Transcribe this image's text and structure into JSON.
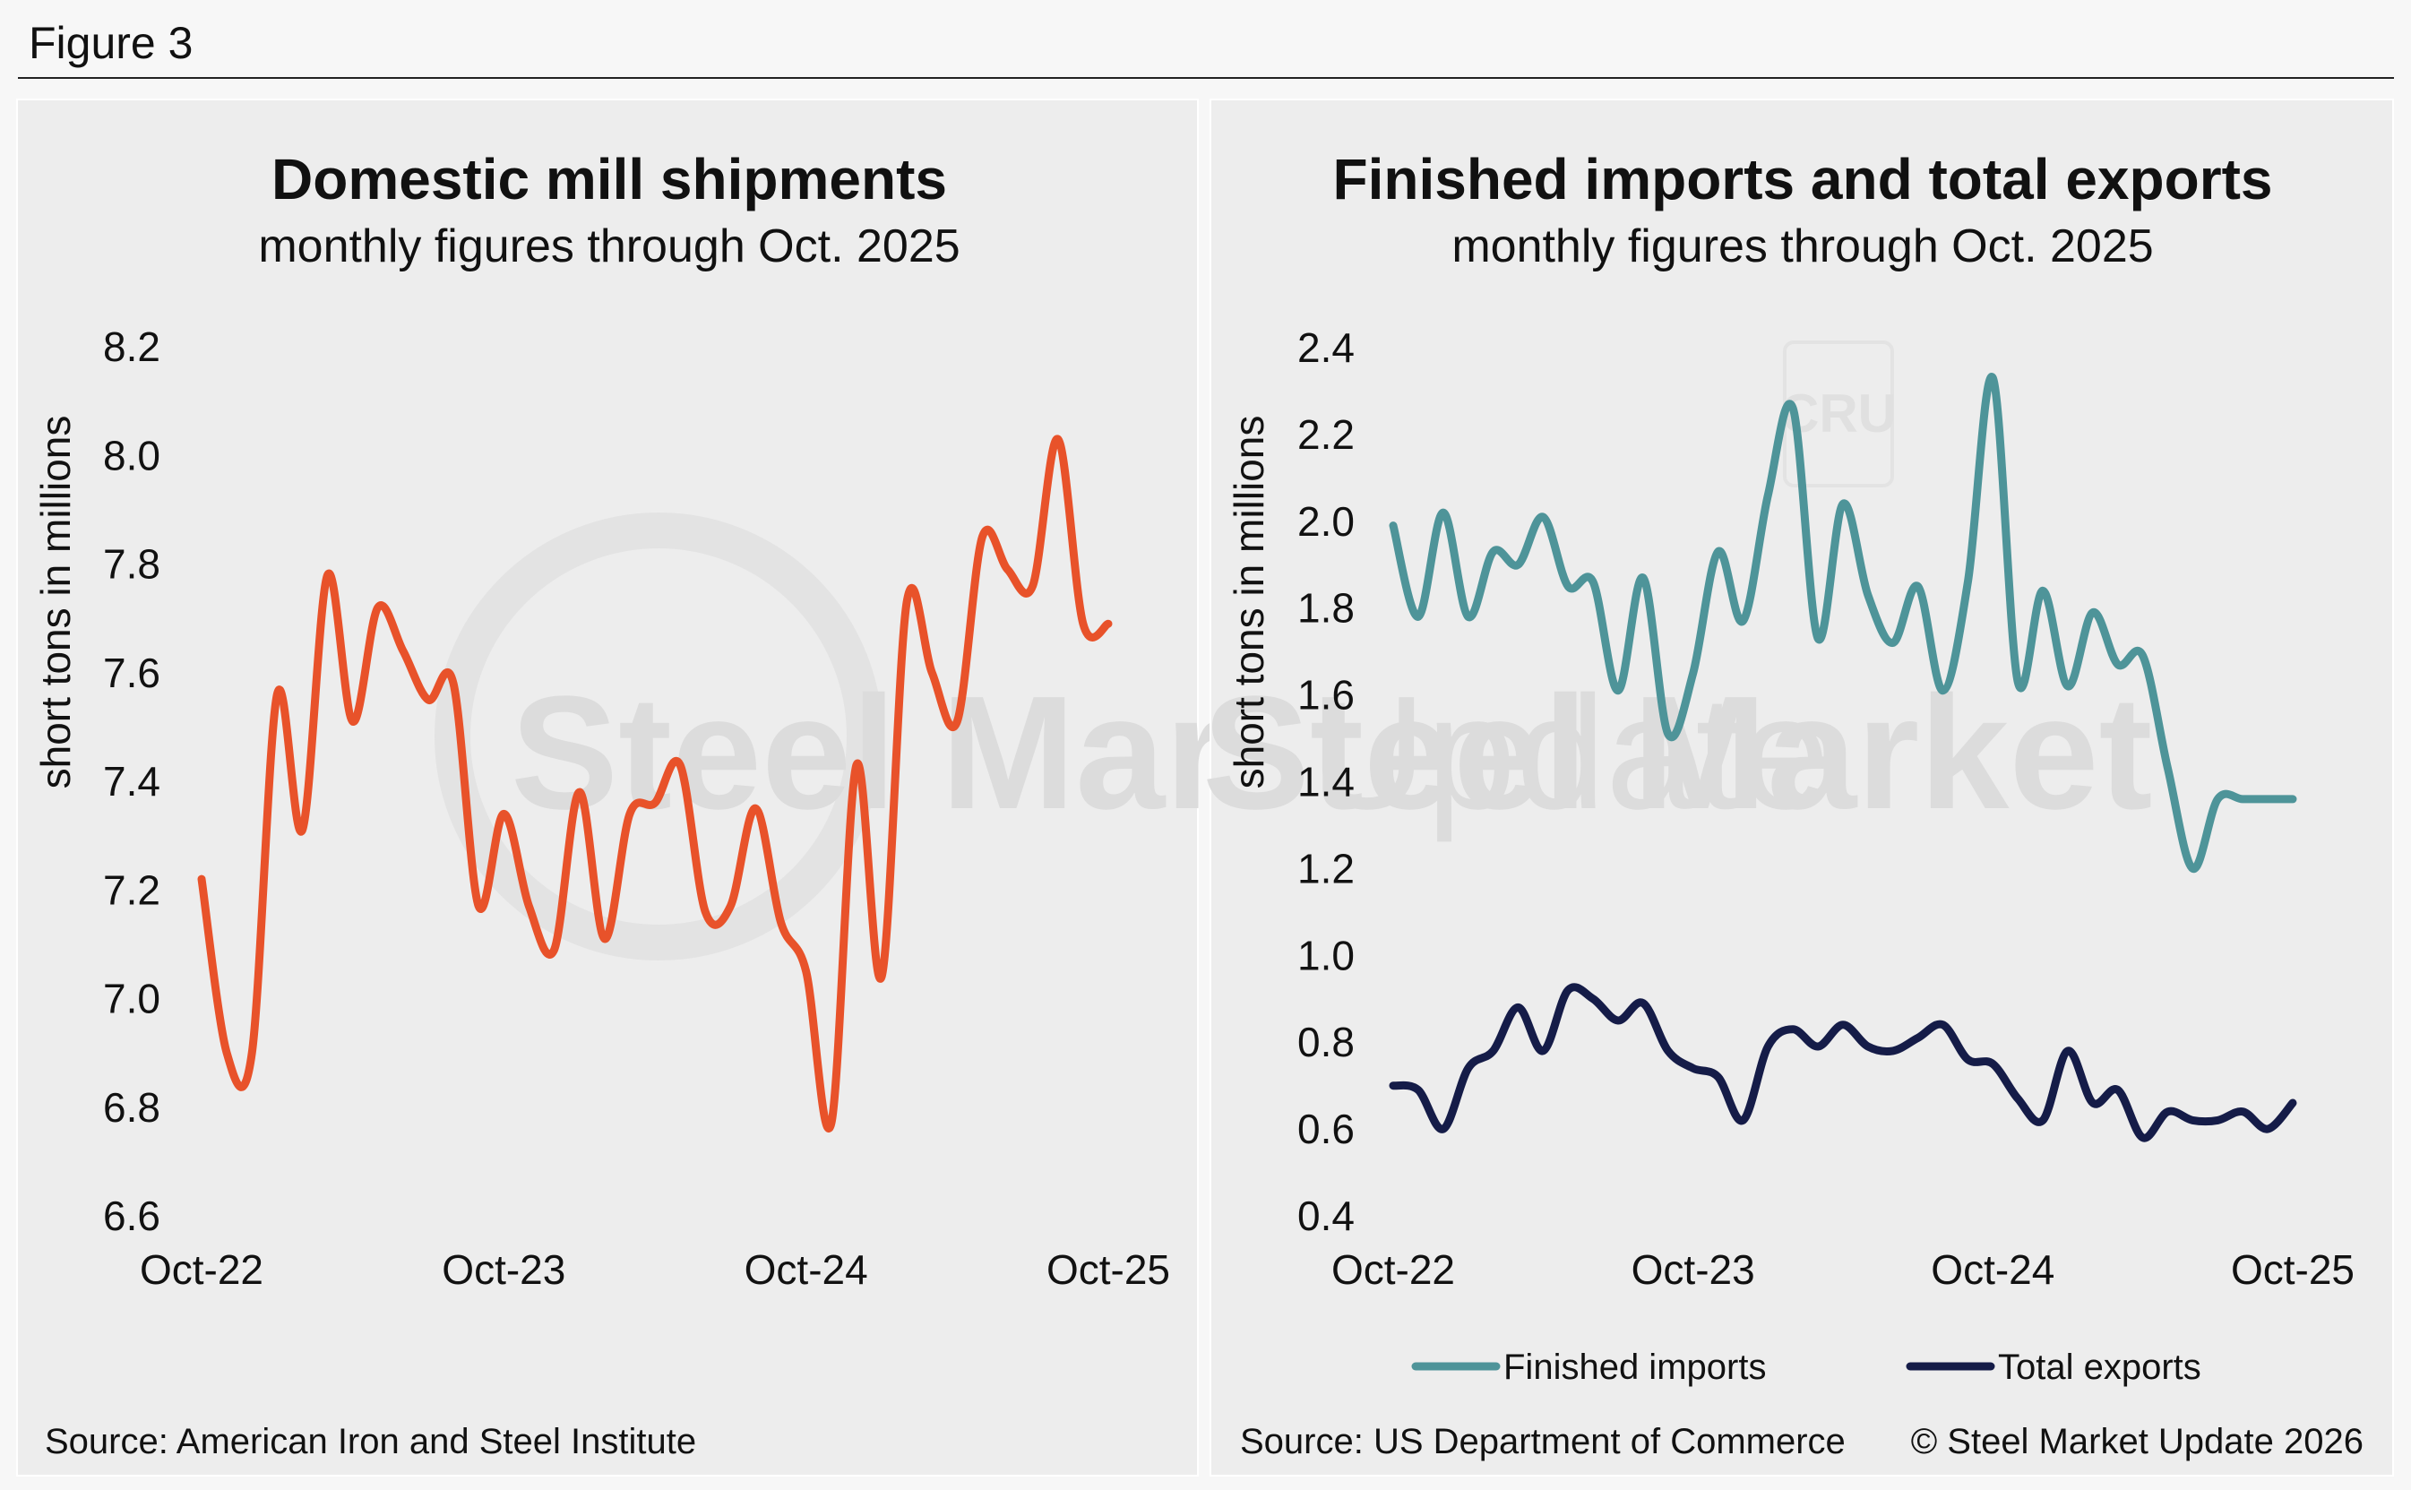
{
  "figure_label": "Figure 3",
  "watermark": {
    "text_bold": "Steel Market",
    "text_light": " Update",
    "badge": "CRU"
  },
  "left": {
    "source": "Source: American Iron and Steel Institute"
  },
  "right": {
    "source": "Source: US Department of Commerce",
    "copyright": "© Steel Market Update 2026"
  },
  "colors": {
    "shipments": "#e8522a",
    "imports": "#4e9499",
    "exports": "#151c48"
  },
  "chart_data": [
    {
      "type": "line",
      "title": "Domestic mill shipments",
      "subtitle": "monthly figures through Oct. 2025",
      "ylabel": "short tons in millions",
      "xlabel": "",
      "ylim": [
        6.6,
        8.2
      ],
      "yticks": [
        "6.6",
        "6.8",
        "7.0",
        "7.2",
        "7.4",
        "7.6",
        "7.8",
        "8.0",
        "8.2"
      ],
      "xticks": [
        "Oct-22",
        "Oct-23",
        "Oct-24",
        "Oct-25"
      ],
      "x": [
        "Oct-22",
        "Nov-22",
        "Dec-22",
        "Jan-23",
        "Feb-23",
        "Mar-23",
        "Apr-23",
        "May-23",
        "Jun-23",
        "Jul-23",
        "Aug-23",
        "Sep-23",
        "Oct-23",
        "Nov-23",
        "Dec-23",
        "Jan-24",
        "Feb-24",
        "Mar-24",
        "Apr-24",
        "May-24",
        "Jun-24",
        "Jul-24",
        "Aug-24",
        "Sep-24",
        "Oct-24",
        "Nov-24",
        "Dec-24",
        "Jan-25",
        "Feb-25",
        "Mar-25",
        "Apr-25",
        "May-25",
        "Jun-25",
        "Jul-25",
        "Aug-25",
        "Sep-25",
        "Oct-25"
      ],
      "series": [
        {
          "name": "Domestic mill shipments",
          "values": [
            7.22,
            6.9,
            6.9,
            7.56,
            7.31,
            7.78,
            7.51,
            7.72,
            7.64,
            7.55,
            7.58,
            7.17,
            7.34,
            7.17,
            7.09,
            7.38,
            7.11,
            7.34,
            7.36,
            7.43,
            7.16,
            7.17,
            7.35,
            7.14,
            7.05,
            6.77,
            7.43,
            7.04,
            7.73,
            7.6,
            7.51,
            7.85,
            7.79,
            7.76,
            8.03,
            7.69,
            7.69
          ]
        }
      ]
    },
    {
      "type": "line",
      "title": "Finished imports and total exports",
      "subtitle": "monthly figures through Oct. 2025",
      "ylabel": "short tons in millions",
      "xlabel": "",
      "ylim": [
        0.4,
        2.4
      ],
      "yticks": [
        "0.4",
        "0.6",
        "0.8",
        "1.0",
        "1.2",
        "1.4",
        "1.6",
        "1.8",
        "2.0",
        "2.2",
        "2.4"
      ],
      "xticks": [
        "Oct-22",
        "Oct-23",
        "Oct-24",
        "Oct-25"
      ],
      "x": [
        "Oct-22",
        "Nov-22",
        "Dec-22",
        "Jan-23",
        "Feb-23",
        "Mar-23",
        "Apr-23",
        "May-23",
        "Jun-23",
        "Jul-23",
        "Aug-23",
        "Sep-23",
        "Oct-23",
        "Nov-23",
        "Dec-23",
        "Jan-24",
        "Feb-24",
        "Mar-24",
        "Apr-24",
        "May-24",
        "Jun-24",
        "Jul-24",
        "Aug-24",
        "Sep-24",
        "Oct-24",
        "Nov-24",
        "Dec-24",
        "Jan-25",
        "Feb-25",
        "Mar-25",
        "Apr-25",
        "May-25",
        "Jun-25",
        "Jul-25",
        "Aug-25",
        "Sep-25",
        "Oct-25"
      ],
      "legend": "bottom",
      "series": [
        {
          "name": "Finished imports",
          "values": [
            1.99,
            1.78,
            2.02,
            1.78,
            1.93,
            1.9,
            2.01,
            1.85,
            1.86,
            1.61,
            1.87,
            1.51,
            1.65,
            1.93,
            1.77,
            2.06,
            2.26,
            1.73,
            2.04,
            1.83,
            1.72,
            1.85,
            1.61,
            1.86,
            2.33,
            1.63,
            1.84,
            1.62,
            1.79,
            1.67,
            1.69,
            1.43,
            1.2,
            1.36,
            1.36,
            1.36,
            1.36
          ]
        },
        {
          "name": "Total exports",
          "values": [
            0.7,
            0.69,
            0.6,
            0.74,
            0.78,
            0.88,
            0.78,
            0.92,
            0.9,
            0.85,
            0.89,
            0.78,
            0.74,
            0.72,
            0.62,
            0.79,
            0.83,
            0.79,
            0.84,
            0.79,
            0.78,
            0.81,
            0.84,
            0.76,
            0.75,
            0.67,
            0.62,
            0.78,
            0.66,
            0.69,
            0.58,
            0.64,
            0.62,
            0.62,
            0.64,
            0.6,
            0.66
          ]
        }
      ]
    }
  ]
}
